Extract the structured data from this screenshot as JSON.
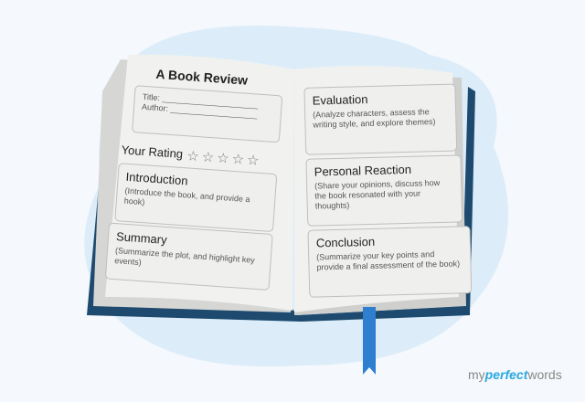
{
  "left_page": {
    "title": "A Book Review",
    "fields": {
      "title_label": "Title: _____________________",
      "author_label": "Author: ___________________"
    },
    "rating_label": "Your Rating",
    "stars": "☆☆☆☆☆",
    "rating_value": 0,
    "sections": [
      {
        "heading": "Introduction",
        "desc": "(Introduce the book, and provide a hook)"
      },
      {
        "heading": "Summary",
        "desc": "(Summarize the plot, and highlight key events)"
      }
    ]
  },
  "right_page": {
    "sections": [
      {
        "heading": "Evaluation",
        "desc": "(Analyze characters, assess the writing style, and explore themes)"
      },
      {
        "heading": "Personal Reaction",
        "desc": "(Share your opinions, discuss how the book resonated with your thoughts)"
      },
      {
        "heading": "Conclusion",
        "desc": "(Summarize your key points and provide a final assessment of the book)"
      }
    ]
  },
  "logo": {
    "part1": "my",
    "part2": "perfect",
    "part3": "words"
  },
  "colors": {
    "cover": "#1d4a6e",
    "bookmark": "#2f7fd0",
    "page": "#f1f1ef",
    "blob": "#dcedf9",
    "logo_accent": "#29a8e0"
  }
}
